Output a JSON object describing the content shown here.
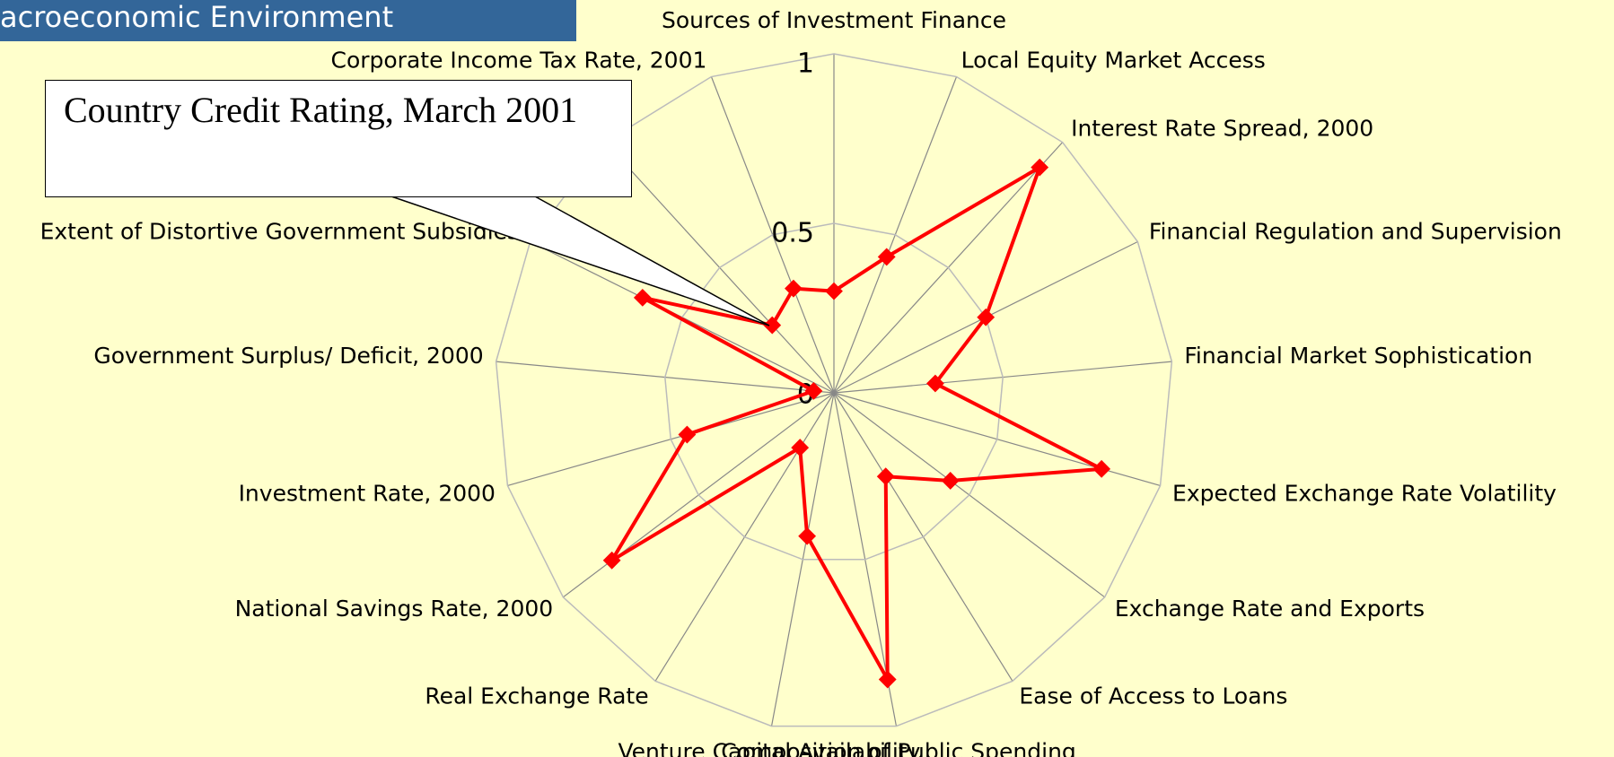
{
  "chart_data": {
    "type": "radar",
    "title": "acroeconomic Environment",
    "annotation": "Country Credit Rating, March 2001",
    "categories": [
      "Sources of Investment Finance",
      "Local Equity Market Access",
      "Interest Rate Spread, 2000",
      "Financial Regulation and Supervision",
      "Financial Market Sophistication",
      "Expected Exchange Rate Volatility",
      "Exchange Rate and Exports",
      "Ease of Access to Loans",
      "Composition of Public Spending",
      "Venture Capital Availability",
      "Real Exchange Rate",
      "National Savings Rate, 2000",
      "Investment Rate, 2000",
      "Government Surplus/ Deficit, 2000",
      "Extent of Distortive Government Subsidies",
      null,
      "Corporate Income Tax Rate, 2001"
    ],
    "values": [
      0.3,
      0.43,
      0.9,
      0.5,
      0.3,
      0.82,
      0.43,
      0.29,
      0.86,
      0.43,
      0.19,
      0.82,
      0.45,
      0.06,
      0.63,
      0.27,
      0.33
    ],
    "color": "#ff0000",
    "ylim": [
      0,
      1
    ],
    "yticks": [
      0,
      0.5,
      1
    ],
    "grid": true
  }
}
